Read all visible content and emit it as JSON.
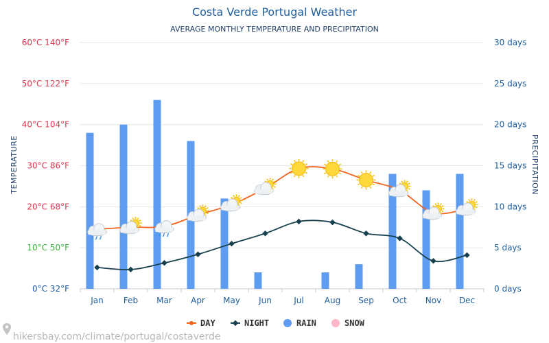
{
  "chart_data": {
    "type": "bar+line",
    "title": "Costa Verde Portugal Weather",
    "subtitle": "AVERAGE MONTHLY TEMPERATURE AND PRECIPITATION",
    "categories": [
      "Jan",
      "Feb",
      "Mar",
      "Apr",
      "May",
      "Jun",
      "Jul",
      "Aug",
      "Sep",
      "Oct",
      "Nov",
      "Dec"
    ],
    "left_axis": {
      "label": "TEMPERATURE",
      "range_c": [
        0,
        60
      ],
      "ticks": [
        {
          "c": 0,
          "text": "0°C 32°F",
          "color": "#1e5aa8"
        },
        {
          "c": 10,
          "text": "10°C 50°F",
          "color": "#3bb33b"
        },
        {
          "c": 20,
          "text": "20°C 68°F",
          "color": "#e0344e"
        },
        {
          "c": 30,
          "text": "30°C 86°F",
          "color": "#e0344e"
        },
        {
          "c": 40,
          "text": "40°C 104°F",
          "color": "#e0344e"
        },
        {
          "c": 50,
          "text": "50°C 122°F",
          "color": "#e0344e"
        },
        {
          "c": 60,
          "text": "60°C 140°F",
          "color": "#e0344e"
        }
      ]
    },
    "right_axis": {
      "label": "PRECIPITATION",
      "range_days": [
        0,
        30
      ],
      "ticks": [
        {
          "d": 0,
          "text": "0 days"
        },
        {
          "d": 5,
          "text": "5 days"
        },
        {
          "d": 10,
          "text": "10 days"
        },
        {
          "d": 15,
          "text": "15 days"
        },
        {
          "d": 20,
          "text": "20 days"
        },
        {
          "d": 25,
          "text": "25 days"
        },
        {
          "d": 30,
          "text": "30 days"
        }
      ]
    },
    "series": [
      {
        "name": "DAY",
        "unit": "°C",
        "color": "#f0641e",
        "values": [
          14.5,
          15,
          15.2,
          18,
          20.5,
          24.5,
          29.3,
          29.2,
          26.5,
          24,
          18.5,
          19.5
        ]
      },
      {
        "name": "NIGHT",
        "unit": "°C",
        "color": "#17404f",
        "values": [
          5.2,
          4.7,
          6.3,
          8.4,
          11,
          13.5,
          16.4,
          16.2,
          13.5,
          12.3,
          6.8,
          8.2
        ]
      },
      {
        "name": "RAIN",
        "unit": "days",
        "color": "#5e9cf2",
        "values": [
          19,
          20,
          23,
          18,
          11,
          2,
          0,
          2,
          3,
          14,
          12,
          14
        ]
      },
      {
        "name": "SNOW",
        "unit": "days",
        "color": "#ffb7c8",
        "values": [
          0,
          0,
          0,
          0,
          0,
          0,
          0,
          0,
          0,
          0,
          0,
          0
        ]
      }
    ],
    "weather_icons": [
      "cloud-rain-icon",
      "cloud-sun-icon",
      "cloud-rain-icon",
      "cloud-sun-icon",
      "cloud-sun-icon",
      "cloud-sun-icon",
      "sun-icon",
      "sun-icon",
      "sun-icon",
      "cloud-sun-icon",
      "cloud-sun-icon",
      "cloud-sun-icon"
    ],
    "grid": true,
    "legend_position": "bottom-center"
  },
  "source": "hikersbay.com/climate/portugal/costaverde",
  "colors": {
    "title": "#1f5d9e",
    "right_axis": "#1f5d9e",
    "grid": "#e6e6e6"
  }
}
